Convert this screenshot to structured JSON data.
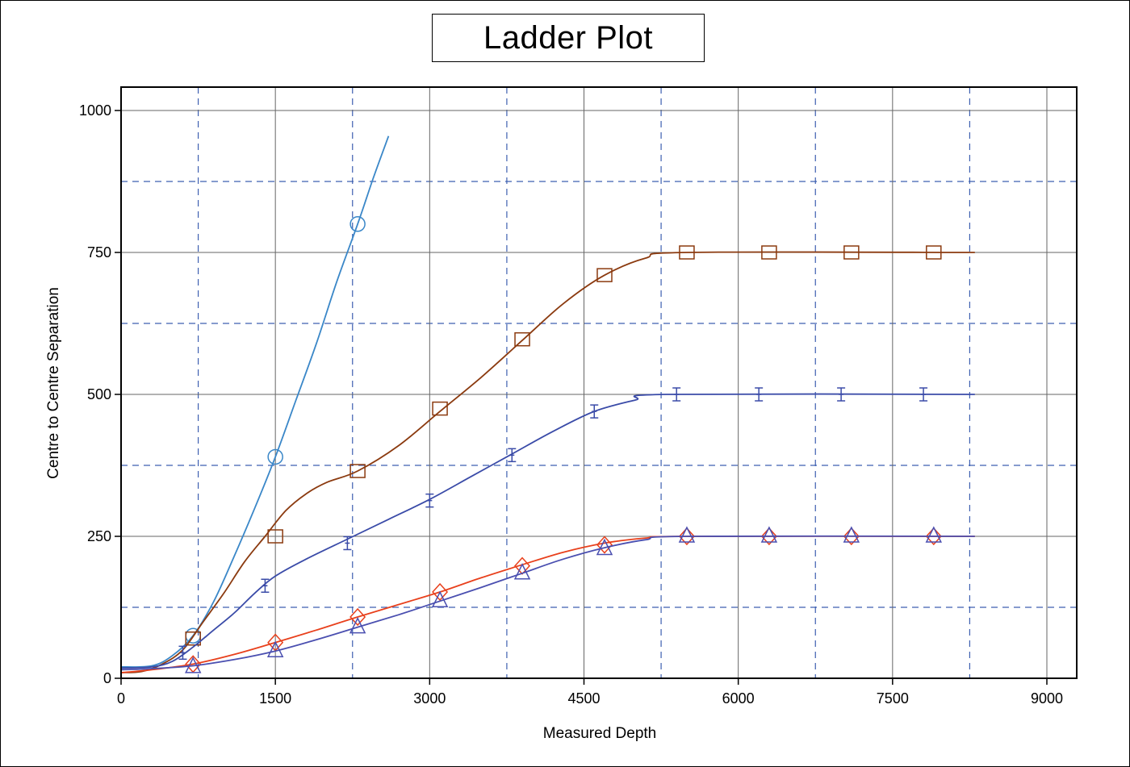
{
  "chart_data": {
    "type": "line",
    "title": "Ladder Plot",
    "xlabel": "Measured Depth",
    "ylabel": "Centre to Centre Separation",
    "xlim": [
      0,
      9200
    ],
    "ylim": [
      0,
      1000
    ],
    "xticks": [
      0,
      1500,
      3000,
      4500,
      6000,
      7500,
      9000
    ],
    "xtick_labels": [
      "0",
      "1500",
      "3000",
      "4500",
      "6000",
      "7500",
      "9000"
    ],
    "yticks": [
      0,
      250,
      500,
      750,
      1000
    ],
    "ytick_labels": [
      "0",
      "250",
      "500",
      "750",
      "1000"
    ],
    "minor_grid_x": [
      750,
      2250,
      3750,
      5250,
      6750,
      8250
    ],
    "minor_grid_y": [
      125,
      375,
      625,
      875
    ],
    "grid": true,
    "legend": "none",
    "series": [
      {
        "color": "#3A87C8",
        "marker": "circle",
        "curve": [
          [
            0,
            20
          ],
          [
            300,
            22
          ],
          [
            500,
            40
          ],
          [
            700,
            75
          ],
          [
            900,
            135
          ],
          [
            1100,
            215
          ],
          [
            1300,
            300
          ],
          [
            1500,
            390
          ],
          [
            1700,
            490
          ],
          [
            1900,
            590
          ],
          [
            2100,
            700
          ],
          [
            2300,
            800
          ],
          [
            2450,
            880
          ],
          [
            2600,
            955
          ]
        ],
        "points": [
          [
            700,
            75
          ],
          [
            1500,
            390
          ],
          [
            2300,
            800
          ]
        ]
      },
      {
        "color": "#8B3A0F",
        "marker": "square",
        "curve": [
          [
            0,
            10
          ],
          [
            200,
            12
          ],
          [
            400,
            25
          ],
          [
            600,
            50
          ],
          [
            800,
            100
          ],
          [
            1000,
            150
          ],
          [
            1200,
            205
          ],
          [
            1400,
            250
          ],
          [
            1600,
            295
          ],
          [
            1800,
            325
          ],
          [
            2000,
            345
          ],
          [
            2300,
            365
          ],
          [
            2700,
            410
          ],
          [
            3100,
            470
          ],
          [
            3500,
            530
          ],
          [
            3900,
            595
          ],
          [
            4300,
            660
          ],
          [
            4700,
            710
          ],
          [
            5100,
            740
          ],
          [
            5500,
            750
          ],
          [
            8300,
            750
          ]
        ],
        "points": [
          [
            700,
            70
          ],
          [
            1500,
            250
          ],
          [
            2300,
            365
          ],
          [
            3100,
            475
          ],
          [
            3900,
            597
          ],
          [
            4700,
            710
          ],
          [
            5500,
            750
          ],
          [
            6300,
            750
          ],
          [
            7100,
            750
          ],
          [
            7900,
            750
          ]
        ]
      },
      {
        "color": "#3A4BA8",
        "marker": "error-bar",
        "curve": [
          [
            0,
            18
          ],
          [
            300,
            20
          ],
          [
            500,
            30
          ],
          [
            700,
            55
          ],
          [
            900,
            85
          ],
          [
            1100,
            115
          ],
          [
            1300,
            150
          ],
          [
            1500,
            180
          ],
          [
            1800,
            210
          ],
          [
            2200,
            245
          ],
          [
            2600,
            280
          ],
          [
            3000,
            315
          ],
          [
            3400,
            355
          ],
          [
            3800,
            395
          ],
          [
            4200,
            435
          ],
          [
            4600,
            470
          ],
          [
            5000,
            490
          ],
          [
            5300,
            500
          ],
          [
            8300,
            500
          ]
        ],
        "points": [
          [
            600,
            45
          ],
          [
            1400,
            163
          ],
          [
            2200,
            238
          ],
          [
            3000,
            313
          ],
          [
            3800,
            393
          ],
          [
            4600,
            470
          ],
          [
            5400,
            500
          ],
          [
            6200,
            500
          ],
          [
            7000,
            500
          ],
          [
            7800,
            500
          ]
        ]
      },
      {
        "color": "#E8401C",
        "marker": "diamond",
        "curve": [
          [
            0,
            10
          ],
          [
            300,
            15
          ],
          [
            700,
            25
          ],
          [
            1100,
            42
          ],
          [
            1500,
            63
          ],
          [
            1900,
            85
          ],
          [
            2300,
            108
          ],
          [
            2700,
            130
          ],
          [
            3100,
            152
          ],
          [
            3500,
            177
          ],
          [
            3900,
            200
          ],
          [
            4300,
            222
          ],
          [
            4700,
            238
          ],
          [
            5100,
            247
          ],
          [
            5500,
            250
          ],
          [
            8300,
            250
          ]
        ],
        "points": [
          [
            700,
            25
          ],
          [
            1500,
            63
          ],
          [
            2300,
            108
          ],
          [
            3100,
            152
          ],
          [
            3900,
            198
          ],
          [
            4700,
            235
          ],
          [
            5500,
            250
          ],
          [
            6300,
            250
          ],
          [
            7100,
            250
          ],
          [
            7900,
            250
          ]
        ]
      },
      {
        "color": "#4A4FB0",
        "marker": "triangle",
        "curve": [
          [
            0,
            15
          ],
          [
            300,
            17
          ],
          [
            700,
            22
          ],
          [
            1100,
            33
          ],
          [
            1500,
            48
          ],
          [
            1900,
            68
          ],
          [
            2300,
            90
          ],
          [
            2700,
            112
          ],
          [
            3100,
            136
          ],
          [
            3500,
            160
          ],
          [
            3900,
            185
          ],
          [
            4300,
            210
          ],
          [
            4700,
            230
          ],
          [
            5100,
            244
          ],
          [
            5500,
            250
          ],
          [
            8300,
            250
          ]
        ],
        "points": [
          [
            700,
            20
          ],
          [
            1500,
            48
          ],
          [
            2300,
            90
          ],
          [
            3100,
            136
          ],
          [
            3900,
            185
          ],
          [
            4700,
            228
          ],
          [
            5500,
            250
          ],
          [
            6300,
            250
          ],
          [
            7100,
            250
          ],
          [
            7900,
            250
          ]
        ]
      }
    ]
  }
}
